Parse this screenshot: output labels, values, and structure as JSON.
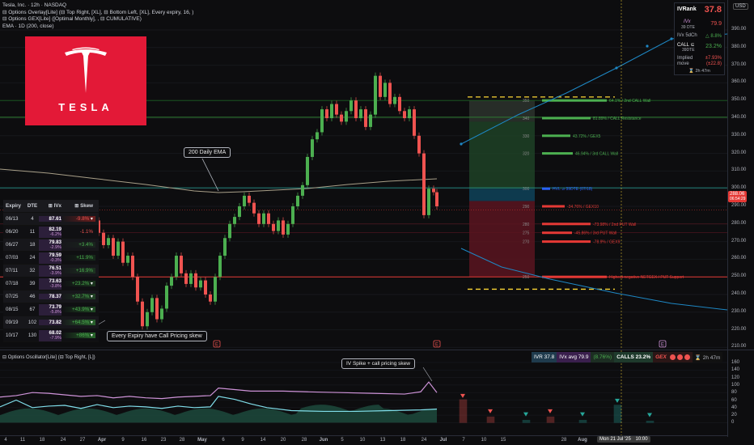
{
  "legend": {
    "title": "Tesla, Inc. · 12h · NASDAQ",
    "line2": "⊟ Options Overlay[Lite] (⊟ Top Right, [XL], ⊟ Bottom Left, [XL], Every expiry, 16, )",
    "line3": "⊟ Options GEX[Lite] ([Optimal Monthly], , ⊟ CUMULATIVE)",
    "line4": "EMA · 1D (200, close)"
  },
  "currency": "USD",
  "y_ticks": [
    "390.00",
    "380.00",
    "370.00",
    "360.00",
    "350.00",
    "340.00",
    "330.00",
    "320.00",
    "310.00",
    "300.00",
    "290.00",
    "280.00",
    "270.00",
    "260.00",
    "250.00",
    "240.00",
    "230.00",
    "220.00",
    "210.00"
  ],
  "osc_ticks": [
    "160",
    "140",
    "120",
    "100",
    "80",
    "60",
    "40",
    "20",
    "0"
  ],
  "x_ticks": [
    "4",
    "11",
    "18",
    "25",
    "Apr",
    "7",
    "14",
    "23",
    "28",
    "May",
    "12",
    "19",
    "26",
    "Jun",
    "9",
    "16",
    "23",
    "Jul",
    "14",
    "21",
    "28",
    "Aug",
    "4"
  ],
  "x_labels": [
    "4",
    "11",
    "18",
    "24",
    "27",
    "Apr",
    "9",
    "16",
    "23",
    "28",
    "May",
    "6",
    "9",
    "14",
    "20",
    "28",
    "Jun",
    "5",
    "10",
    "13",
    "18",
    "24",
    "Jul",
    "7",
    "10",
    "15",
    "Mon 21 Jul '25",
    "10:00",
    "28",
    "Aug",
    "6",
    "11"
  ],
  "price_tag": {
    "value": "288.06",
    "time": "06:54:29"
  },
  "iv_box": {
    "ivrank_label": "IVRank",
    "ivrank": "37.8",
    "ivx_label": "IVx",
    "ivx_sub": "39 DTE",
    "ivx": "79.9",
    "ivx5d_label": "IVx 5dCh",
    "ivx5d": "△ 8.8%",
    "call_label": "CALL ⊆",
    "call_sub": "39DTE",
    "call": "23.2%",
    "implied_label": "Implied move",
    "implied": "±7.93%",
    "implied_sub": "(±22.8)",
    "timer": "⌛ 2h 47m"
  },
  "logo": {
    "text": "TESLA"
  },
  "annotations": {
    "ema": "200 Daily EMA",
    "every_expiry": "Every Expiry have Call Pricing skew",
    "iv_spike": "IV Spike + call pricing skew"
  },
  "expiry_table": {
    "headers": [
      "Expiry",
      "DTE",
      "⊞ IVx",
      "⊞ Skew"
    ],
    "rows": [
      {
        "expiry": "06/13",
        "dte": "4",
        "ivx": "87.61",
        "ivx_ch": "",
        "skew": "-9.8%"
      },
      {
        "expiry": "06/20",
        "dte": "11",
        "ivx": "82.19",
        "ivx_ch": "-6.2%",
        "skew": "-1.1%"
      },
      {
        "expiry": "06/27",
        "dte": "18",
        "ivx": "79.83",
        "ivx_ch": "-2.9%",
        "skew": "+3.4%"
      },
      {
        "expiry": "07/03",
        "dte": "24",
        "ivx": "79.59",
        "ivx_ch": "-0.3%",
        "skew": "+11.9%"
      },
      {
        "expiry": "07/11",
        "dte": "32",
        "ivx": "76.51",
        "ivx_ch": "-3.9%",
        "skew": "+16.9%"
      },
      {
        "expiry": "07/18",
        "dte": "39",
        "ivx": "73.63",
        "ivx_ch": "-3.8%",
        "skew": "+23.2%"
      },
      {
        "expiry": "07/25",
        "dte": "46",
        "ivx": "78.37",
        "ivx_ch": "",
        "skew": "+32.7%"
      },
      {
        "expiry": "08/15",
        "dte": "67",
        "ivx": "73.79",
        "ivx_ch": "-5.8%",
        "skew": "+43.9%"
      },
      {
        "expiry": "09/19",
        "dte": "102",
        "ivx": "73.82",
        "ivx_ch": "",
        "skew": "+64.5%"
      },
      {
        "expiry": "10/17",
        "dte": "130",
        "ivx": "68.02",
        "ivx_ch": "-7.9%",
        "skew": "+86%"
      }
    ]
  },
  "gex_levels": [
    {
      "label": "64.1% / 2nd CALL Wall",
      "color": "#4caf50"
    },
    {
      "label": "81.89% / CALL Resistance",
      "color": "#4caf50"
    },
    {
      "label": "43.72% / GEX5",
      "color": "#4caf50"
    },
    {
      "label": "46.94% / 3rd CALL Wall",
      "color": "#4caf50"
    },
    {
      "label": "HVL ⊿ 39DTE (07/18)",
      "color": "#2962ff"
    },
    {
      "label": "-34.76% / GEX10",
      "color": "#e53935"
    },
    {
      "label": "-73.98% / 2nd PUT Wall",
      "color": "#e53935"
    },
    {
      "label": "-45.86% / 3rd PUT Wall",
      "color": "#e53935"
    },
    {
      "label": "-78.9% / GEX9",
      "color": "#e53935"
    },
    {
      "label": "Highest negative NETGEX / PUT Support",
      "color": "#e53935"
    }
  ],
  "gex_strikes": [
    "350",
    "340",
    "330",
    "320",
    "300",
    "290",
    "280",
    "275",
    "270",
    "250"
  ],
  "oscillator": {
    "legend": "⊟ Options Oscillator[Lite] (⊟ Top Right, [L])",
    "ivr": "IVR 37.8",
    "ivx_avg": "IVx avg 79.9",
    "ivx_ch": "(8.76%)",
    "calls": "CALLS 23.2%",
    "gex": "GEX",
    "timer": "⌛ 2h 47m"
  },
  "event_markers": [
    "E",
    "E"
  ]
}
